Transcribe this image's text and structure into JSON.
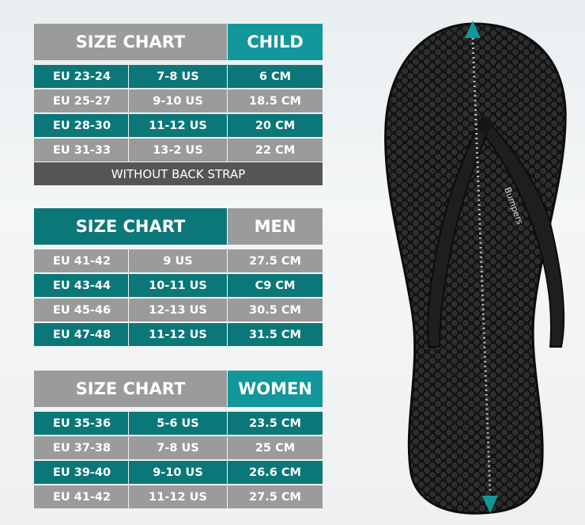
{
  "colors": {
    "teal": "#0c7778",
    "teal_header": "#12979a",
    "grey": "#9b9b9b",
    "footer": "#555555"
  },
  "child": {
    "title": "SIZE CHART",
    "category": "CHILD",
    "rows": [
      [
        "EU 23-24",
        "7-8 US",
        "6 CM"
      ],
      [
        "EU 25-27",
        "9-10 US",
        "18.5 CM"
      ],
      [
        "EU 28-30",
        "11-12 US",
        "20 CM"
      ],
      [
        "EU 31-33",
        "13-2 US",
        "22 CM"
      ]
    ],
    "footer": "WITHOUT BACK STRAP"
  },
  "men": {
    "title": "SIZE CHART",
    "category": "MEN",
    "rows": [
      [
        "EU 41-42",
        "9 US",
        "27.5 CM"
      ],
      [
        "EU 43-44",
        "10-11 US",
        "C9 CM"
      ],
      [
        "EU 45-46",
        "12-13 US",
        "30.5 CM"
      ],
      [
        "EU 47-48",
        "11-12 US",
        "31.5 CM"
      ]
    ]
  },
  "women": {
    "title": "SIZE CHART",
    "category": "WOMEN",
    "rows": [
      [
        "EU 35-36",
        "5-6 US",
        "23.5 CM"
      ],
      [
        "EU 37-38",
        "7-8 US",
        "25 CM"
      ],
      [
        "EU 39-40",
        "9-10 US",
        "26.6 CM"
      ],
      [
        "EU 41-42",
        "11-12 US",
        "27.5 CM"
      ]
    ]
  },
  "product": {
    "brand_logo": "Bumpers",
    "icons": [
      "arrow-up-icon",
      "arrow-down-icon"
    ]
  }
}
